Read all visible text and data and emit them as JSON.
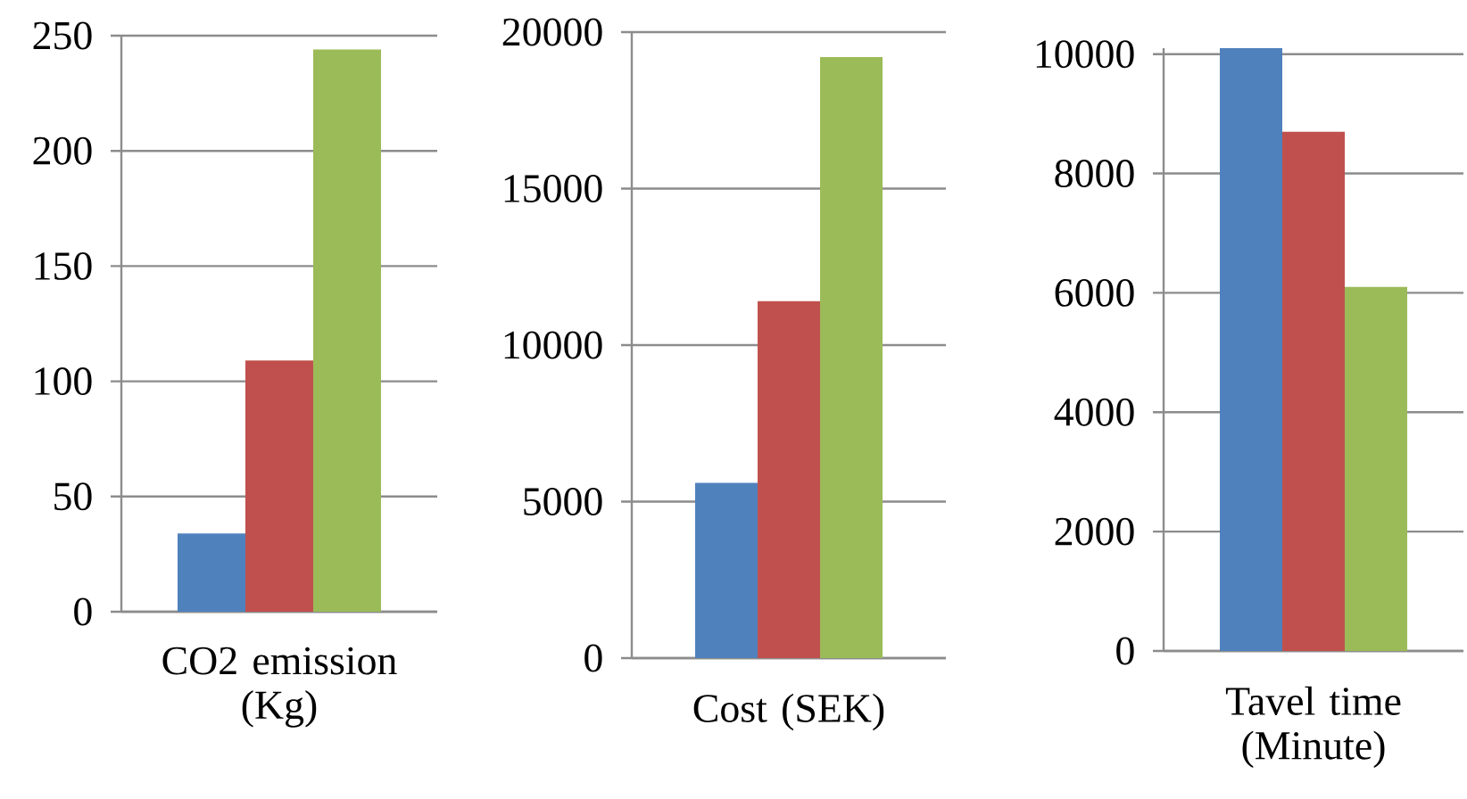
{
  "chart_data": [
    {
      "type": "bar",
      "categories": [
        "CO2 emission (Kg)"
      ],
      "ylim": [
        0,
        250
      ],
      "yticks": [
        0,
        50,
        100,
        150,
        200,
        250
      ],
      "grid": "y",
      "series": [
        {
          "color": "#4f81bd",
          "values": [
            34
          ]
        },
        {
          "color": "#c0504d",
          "values": [
            109
          ]
        },
        {
          "color": "#9bbb59",
          "values": [
            244
          ]
        }
      ]
    },
    {
      "type": "bar",
      "categories": [
        "Cost (SEK)"
      ],
      "ylim": [
        0,
        20000
      ],
      "yticks": [
        0,
        5000,
        10000,
        15000,
        20000
      ],
      "grid": "y",
      "series": [
        {
          "color": "#4f81bd",
          "values": [
            5600
          ]
        },
        {
          "color": "#c0504d",
          "values": [
            11400
          ]
        },
        {
          "color": "#9bbb59",
          "values": [
            19200
          ]
        }
      ]
    },
    {
      "type": "bar",
      "categories": [
        "Tavel time (Minute)"
      ],
      "ylim": [
        0,
        10100
      ],
      "yticks": [
        0,
        2000,
        4000,
        6000,
        8000,
        10000
      ],
      "grid": "y",
      "series": [
        {
          "color": "#4f81bd",
          "values": [
            10100
          ]
        },
        {
          "color": "#c0504d",
          "values": [
            8700
          ]
        },
        {
          "color": "#9bbb59",
          "values": [
            6100
          ]
        }
      ]
    }
  ]
}
